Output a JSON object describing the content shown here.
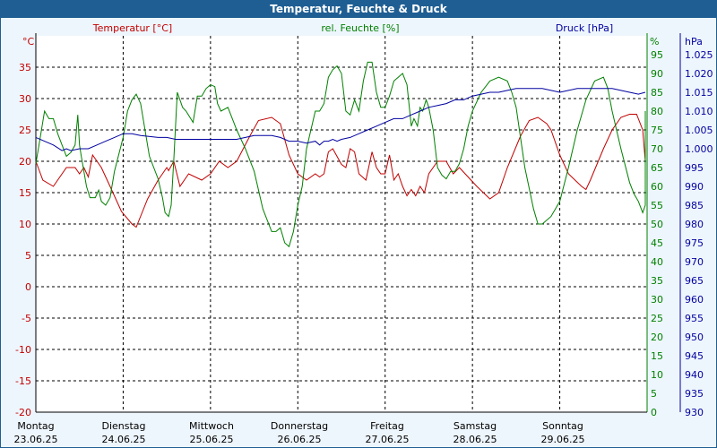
{
  "window": {
    "title": "Temperatur, Feuchte & Druck"
  },
  "chart_data": {
    "type": "line",
    "title": "Temperatur, Feuchte & Druck",
    "colors": {
      "temperature": "#c00000",
      "humidity": "#008000",
      "pressure": "#0000a0",
      "grid": "#000000"
    },
    "x": {
      "range": [
        0,
        7
      ],
      "days": [
        {
          "day": "Montag",
          "date": "23.06.25"
        },
        {
          "day": "Dienstag",
          "date": "24.06.25"
        },
        {
          "day": "Mittwoch",
          "date": "25.06.25"
        },
        {
          "day": "Donnerstag",
          "date": "26.06.25"
        },
        {
          "day": "Freitag",
          "date": "27.06.25"
        },
        {
          "day": "Samstag",
          "date": "28.06.25"
        },
        {
          "day": "Sonntag",
          "date": "29.06.25"
        }
      ]
    },
    "axes": {
      "temperature": {
        "label": "Temperatur [°C]",
        "unit": "°C",
        "range": [
          -20,
          40
        ],
        "ticks": [
          "-20",
          "-15",
          "-10",
          "-5",
          "0",
          "5",
          "10",
          "15",
          "20",
          "25",
          "30",
          "35"
        ]
      },
      "humidity": {
        "label": "rel. Feuchte [%]",
        "unit": "%",
        "range": [
          0,
          100
        ],
        "ticks": [
          "0",
          "5",
          "10",
          "15",
          "20",
          "25",
          "30",
          "35",
          "40",
          "45",
          "50",
          "55",
          "60",
          "65",
          "70",
          "75",
          "80",
          "85",
          "90",
          "95"
        ]
      },
      "pressure": {
        "label": "Druck [hPa]",
        "unit": "hPa",
        "range": [
          930,
          1030
        ],
        "ticks": [
          "930",
          "935",
          "940",
          "945",
          "950",
          "955",
          "960",
          "965",
          "970",
          "975",
          "980",
          "985",
          "990",
          "995",
          "1.000",
          "1.005",
          "1.010",
          "1.015",
          "1.020",
          "1.025"
        ]
      }
    },
    "series": [
      {
        "name": "Temperatur",
        "axis": "temperature",
        "points": [
          [
            0,
            20
          ],
          [
            0.08,
            17
          ],
          [
            0.2,
            16
          ],
          [
            0.35,
            19
          ],
          [
            0.45,
            19
          ],
          [
            0.5,
            18
          ],
          [
            0.55,
            19
          ],
          [
            0.6,
            17.5
          ],
          [
            0.65,
            21
          ],
          [
            0.75,
            19
          ],
          [
            0.85,
            16
          ],
          [
            0.98,
            12
          ],
          [
            1.1,
            10
          ],
          [
            1.15,
            9.5
          ],
          [
            1.28,
            14
          ],
          [
            1.4,
            17
          ],
          [
            1.5,
            19
          ],
          [
            1.52,
            18.5
          ],
          [
            1.58,
            20
          ],
          [
            1.65,
            16
          ],
          [
            1.75,
            18
          ],
          [
            1.9,
            17
          ],
          [
            2.0,
            18
          ],
          [
            2.1,
            20
          ],
          [
            2.2,
            19
          ],
          [
            2.3,
            20
          ],
          [
            2.45,
            24
          ],
          [
            2.55,
            26.5
          ],
          [
            2.7,
            27
          ],
          [
            2.8,
            26
          ],
          [
            2.9,
            21
          ],
          [
            3.0,
            18
          ],
          [
            3.1,
            17
          ],
          [
            3.2,
            18
          ],
          [
            3.25,
            17.5
          ],
          [
            3.3,
            18
          ],
          [
            3.35,
            21.5
          ],
          [
            3.4,
            22
          ],
          [
            3.5,
            19.5
          ],
          [
            3.55,
            19
          ],
          [
            3.6,
            22
          ],
          [
            3.65,
            21.5
          ],
          [
            3.7,
            18
          ],
          [
            3.78,
            17
          ],
          [
            3.85,
            21.5
          ],
          [
            3.9,
            19
          ],
          [
            3.95,
            18
          ],
          [
            4.0,
            18
          ],
          [
            4.05,
            21
          ],
          [
            4.1,
            17
          ],
          [
            4.15,
            18
          ],
          [
            4.2,
            16
          ],
          [
            4.25,
            14.5
          ],
          [
            4.3,
            15.5
          ],
          [
            4.35,
            14.5
          ],
          [
            4.4,
            16
          ],
          [
            4.45,
            15
          ],
          [
            4.5,
            18
          ],
          [
            4.6,
            20
          ],
          [
            4.7,
            20
          ],
          [
            4.78,
            18
          ],
          [
            4.85,
            19
          ],
          [
            4.95,
            17.5
          ],
          [
            5.05,
            16
          ],
          [
            5.2,
            14
          ],
          [
            5.3,
            15
          ],
          [
            5.4,
            19
          ],
          [
            5.55,
            24
          ],
          [
            5.65,
            26.5
          ],
          [
            5.75,
            27
          ],
          [
            5.85,
            26
          ],
          [
            5.9,
            25
          ],
          [
            6.0,
            21
          ],
          [
            6.1,
            18
          ],
          [
            6.25,
            16
          ],
          [
            6.3,
            15.5
          ],
          [
            6.35,
            17
          ],
          [
            6.5,
            22
          ],
          [
            6.6,
            25
          ],
          [
            6.7,
            27
          ],
          [
            6.8,
            27.5
          ],
          [
            6.88,
            27.5
          ],
          [
            6.95,
            25
          ],
          [
            7,
            20
          ]
        ]
      },
      {
        "name": "rel. Feuchte",
        "axis": "humidity",
        "points": [
          [
            0,
            66
          ],
          [
            0.05,
            73
          ],
          [
            0.1,
            80
          ],
          [
            0.15,
            78
          ],
          [
            0.2,
            78
          ],
          [
            0.25,
            74
          ],
          [
            0.3,
            71
          ],
          [
            0.35,
            68
          ],
          [
            0.4,
            69
          ],
          [
            0.45,
            71
          ],
          [
            0.48,
            79
          ],
          [
            0.5,
            71
          ],
          [
            0.52,
            68
          ],
          [
            0.58,
            60
          ],
          [
            0.62,
            57
          ],
          [
            0.68,
            57
          ],
          [
            0.72,
            59
          ],
          [
            0.75,
            56
          ],
          [
            0.8,
            55
          ],
          [
            0.85,
            57
          ],
          [
            0.9,
            64
          ],
          [
            1.0,
            73
          ],
          [
            1.05,
            80
          ],
          [
            1.1,
            83
          ],
          [
            1.15,
            84.5
          ],
          [
            1.2,
            82
          ],
          [
            1.3,
            68
          ],
          [
            1.4,
            62
          ],
          [
            1.45,
            57
          ],
          [
            1.48,
            53
          ],
          [
            1.52,
            52
          ],
          [
            1.55,
            55
          ],
          [
            1.58,
            67
          ],
          [
            1.62,
            85
          ],
          [
            1.68,
            81
          ],
          [
            1.72,
            80
          ],
          [
            1.8,
            77
          ],
          [
            1.85,
            84
          ],
          [
            1.9,
            84
          ],
          [
            1.95,
            86
          ],
          [
            2.0,
            87
          ],
          [
            2.05,
            86.5
          ],
          [
            2.08,
            82
          ],
          [
            2.12,
            80
          ],
          [
            2.2,
            81
          ],
          [
            2.3,
            75
          ],
          [
            2.4,
            70
          ],
          [
            2.5,
            64
          ],
          [
            2.6,
            54
          ],
          [
            2.65,
            51
          ],
          [
            2.7,
            48
          ],
          [
            2.75,
            48
          ],
          [
            2.8,
            49
          ],
          [
            2.85,
            45
          ],
          [
            2.9,
            44
          ],
          [
            2.95,
            48
          ],
          [
            3.0,
            55
          ],
          [
            3.05,
            60
          ],
          [
            3.1,
            70
          ],
          [
            3.15,
            75
          ],
          [
            3.2,
            80
          ],
          [
            3.25,
            80
          ],
          [
            3.3,
            82
          ],
          [
            3.35,
            89
          ],
          [
            3.4,
            91
          ],
          [
            3.45,
            92
          ],
          [
            3.5,
            90
          ],
          [
            3.55,
            80
          ],
          [
            3.6,
            79
          ],
          [
            3.65,
            83
          ],
          [
            3.7,
            80
          ],
          [
            3.75,
            88
          ],
          [
            3.8,
            93
          ],
          [
            3.85,
            93
          ],
          [
            3.9,
            85
          ],
          [
            3.95,
            81
          ],
          [
            4.0,
            81
          ],
          [
            4.05,
            84
          ],
          [
            4.1,
            88
          ],
          [
            4.15,
            89
          ],
          [
            4.2,
            90
          ],
          [
            4.25,
            87
          ],
          [
            4.3,
            76
          ],
          [
            4.33,
            78
          ],
          [
            4.37,
            76
          ],
          [
            4.4,
            81
          ],
          [
            4.43,
            80
          ],
          [
            4.47,
            83
          ],
          [
            4.5,
            81
          ],
          [
            4.55,
            75
          ],
          [
            4.6,
            65
          ],
          [
            4.65,
            63
          ],
          [
            4.7,
            62
          ],
          [
            4.75,
            64
          ],
          [
            4.8,
            64
          ],
          [
            4.85,
            66
          ],
          [
            4.9,
            70
          ],
          [
            4.95,
            76
          ],
          [
            5.0,
            80
          ],
          [
            5.1,
            85
          ],
          [
            5.2,
            88
          ],
          [
            5.3,
            89
          ],
          [
            5.4,
            88
          ],
          [
            5.45,
            85
          ],
          [
            5.5,
            81
          ],
          [
            5.6,
            65
          ],
          [
            5.7,
            54
          ],
          [
            5.75,
            50
          ],
          [
            5.8,
            50
          ],
          [
            5.9,
            52
          ],
          [
            6.0,
            56
          ],
          [
            6.1,
            65
          ],
          [
            6.2,
            75
          ],
          [
            6.3,
            83
          ],
          [
            6.4,
            88
          ],
          [
            6.5,
            89
          ],
          [
            6.55,
            86
          ],
          [
            6.6,
            80
          ],
          [
            6.7,
            70
          ],
          [
            6.8,
            61
          ],
          [
            6.85,
            58
          ],
          [
            6.9,
            56
          ],
          [
            6.95,
            53
          ],
          [
            7.0,
            55
          ],
          [
            7.05,
            62
          ],
          [
            7.1,
            72
          ],
          [
            7.12,
            80
          ]
        ]
      },
      {
        "name": "Druck",
        "axis": "pressure",
        "points": [
          [
            0,
            1003
          ],
          [
            0.2,
            1001
          ],
          [
            0.3,
            999.5
          ],
          [
            0.35,
            1000
          ],
          [
            0.4,
            999.5
          ],
          [
            0.5,
            1000
          ],
          [
            0.6,
            1000
          ],
          [
            0.7,
            1001
          ],
          [
            0.8,
            1002
          ],
          [
            0.9,
            1003
          ],
          [
            1.0,
            1004
          ],
          [
            1.1,
            1004
          ],
          [
            1.2,
            1003.5
          ],
          [
            1.4,
            1003
          ],
          [
            1.5,
            1003
          ],
          [
            1.6,
            1002.5
          ],
          [
            1.7,
            1002.5
          ],
          [
            1.9,
            1002.5
          ],
          [
            2.0,
            1002.5
          ],
          [
            2.2,
            1002.5
          ],
          [
            2.3,
            1002.5
          ],
          [
            2.4,
            1003
          ],
          [
            2.5,
            1003.5
          ],
          [
            2.6,
            1003.5
          ],
          [
            2.7,
            1003.5
          ],
          [
            2.8,
            1003
          ],
          [
            2.9,
            1002
          ],
          [
            3.0,
            1002
          ],
          [
            3.1,
            1001.5
          ],
          [
            3.2,
            1002
          ],
          [
            3.25,
            1001
          ],
          [
            3.3,
            1002
          ],
          [
            3.35,
            1002
          ],
          [
            3.4,
            1002.5
          ],
          [
            3.45,
            1002
          ],
          [
            3.5,
            1002.5
          ],
          [
            3.6,
            1003
          ],
          [
            3.7,
            1004
          ],
          [
            3.8,
            1005
          ],
          [
            3.9,
            1006
          ],
          [
            4.0,
            1007
          ],
          [
            4.1,
            1008
          ],
          [
            4.2,
            1008
          ],
          [
            4.3,
            1009
          ],
          [
            4.4,
            1010
          ],
          [
            4.5,
            1011
          ],
          [
            4.6,
            1011.5
          ],
          [
            4.7,
            1012
          ],
          [
            4.8,
            1013
          ],
          [
            4.9,
            1013
          ],
          [
            5.0,
            1014
          ],
          [
            5.1,
            1014.5
          ],
          [
            5.2,
            1015
          ],
          [
            5.3,
            1015
          ],
          [
            5.4,
            1015.5
          ],
          [
            5.5,
            1016
          ],
          [
            5.6,
            1016
          ],
          [
            5.7,
            1016
          ],
          [
            5.8,
            1016
          ],
          [
            5.9,
            1015.5
          ],
          [
            6.0,
            1015
          ],
          [
            6.1,
            1015.5
          ],
          [
            6.2,
            1016
          ],
          [
            6.3,
            1016
          ],
          [
            6.4,
            1016
          ],
          [
            6.5,
            1016
          ],
          [
            6.6,
            1016
          ],
          [
            6.7,
            1015.5
          ],
          [
            6.8,
            1015
          ],
          [
            6.9,
            1014.5
          ],
          [
            7.0,
            1015
          ],
          [
            7.1,
            1015
          ]
        ]
      }
    ]
  }
}
